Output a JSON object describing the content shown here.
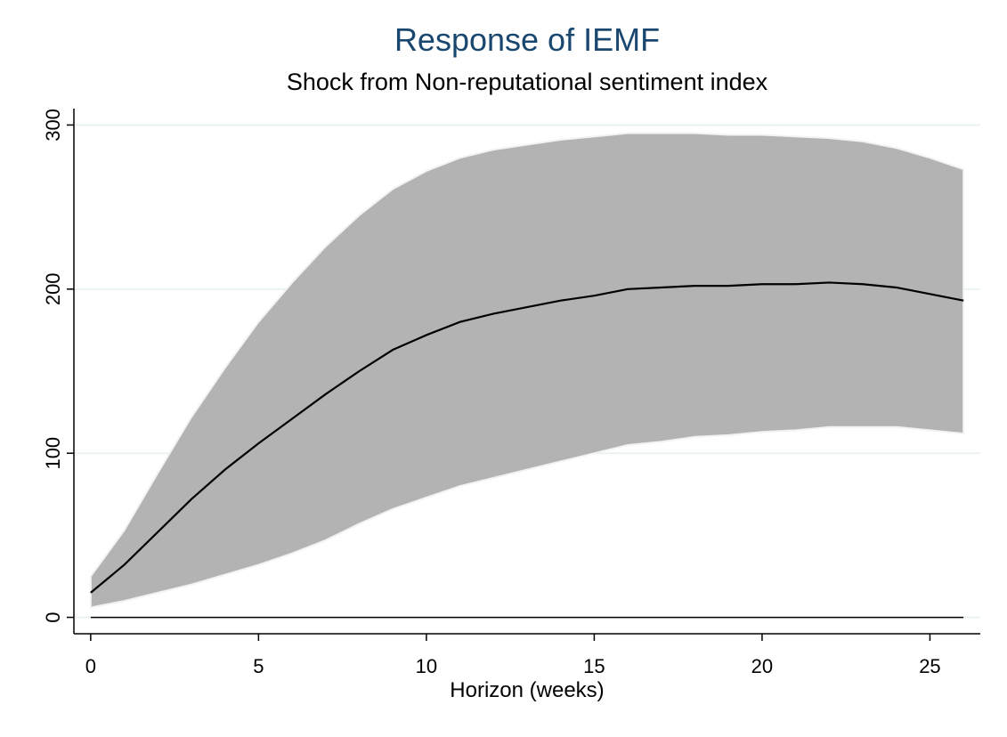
{
  "chart_data": {
    "type": "line",
    "title": "Response of IEMF",
    "subtitle": "Shock from Non-reputational sentiment index",
    "xlabel": "Horizon (weeks)",
    "x": [
      0,
      1,
      2,
      3,
      4,
      5,
      6,
      7,
      8,
      9,
      10,
      11,
      12,
      13,
      14,
      15,
      16,
      17,
      18,
      19,
      20,
      21,
      22,
      23,
      24,
      25,
      26
    ],
    "series": [
      {
        "color": "#000000",
        "values": [
          15,
          32,
          52,
          72,
          90,
          106,
          121,
          136,
          150,
          163,
          172,
          180,
          185,
          189,
          193,
          196,
          200,
          201,
          202,
          202,
          203,
          203,
          204,
          203,
          201,
          197,
          193
        ]
      }
    ],
    "band": {
      "color": "#b3b3b3",
      "upper": [
        25,
        53,
        88,
        122,
        152,
        180,
        204,
        226,
        245,
        261,
        272,
        280,
        285,
        288,
        291,
        293,
        295,
        295,
        295,
        294,
        294,
        293,
        292,
        290,
        286,
        280,
        273
      ],
      "lower": [
        6,
        10,
        15,
        20,
        26,
        32,
        39,
        47,
        57,
        66,
        73,
        80,
        85,
        90,
        95,
        100,
        105,
        107,
        110,
        111,
        113,
        114,
        116,
        116,
        116,
        114,
        112
      ]
    },
    "hline": 0,
    "xlim": [
      -0.5,
      26.5
    ],
    "xticks": [
      0,
      5,
      10,
      15,
      20,
      25
    ],
    "ylim": [
      -10,
      310
    ],
    "yticks": [
      0,
      100,
      200,
      300
    ],
    "grid": true
  }
}
